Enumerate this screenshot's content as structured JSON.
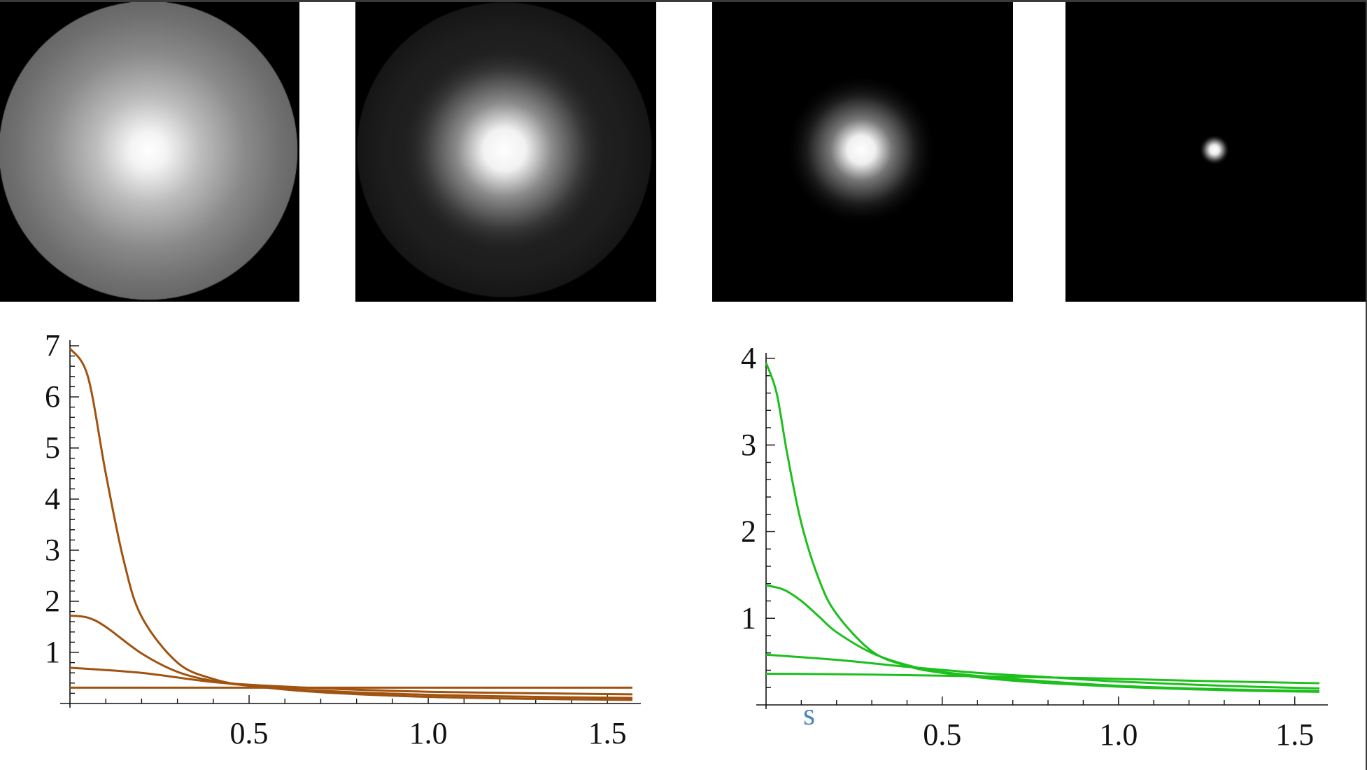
{
  "colors": {
    "brown_series": "#a0520f",
    "green_series": "#1dbf1d",
    "background": "#ffffff",
    "panel_background": "#000000",
    "stray_mark": "#4a87b8"
  },
  "panels": [
    {
      "name": "intensity-panel-1"
    },
    {
      "name": "intensity-panel-2"
    },
    {
      "name": "intensity-panel-3"
    },
    {
      "name": "intensity-panel-4"
    }
  ],
  "stray_mark_text": "s",
  "chart_data": [
    {
      "type": "line",
      "xlim": [
        0,
        1.57
      ],
      "ylim": [
        0,
        7
      ],
      "x_ticks": [
        "0.5",
        "1.0",
        "1.5"
      ],
      "y_ticks": [
        "1",
        "2",
        "3",
        "4",
        "5",
        "6",
        "7"
      ],
      "grid": false,
      "series": [
        {
          "x": [
            0,
            0.05,
            0.1,
            0.15,
            0.2,
            0.3,
            0.4,
            0.5,
            0.7,
            1.0,
            1.3,
            1.57
          ],
          "y": [
            6.95,
            6.4,
            4.5,
            2.8,
            1.7,
            0.8,
            0.48,
            0.35,
            0.22,
            0.13,
            0.09,
            0.07
          ]
        },
        {
          "x": [
            0,
            0.05,
            0.1,
            0.2,
            0.3,
            0.4,
            0.5,
            0.7,
            1.0,
            1.3,
            1.57
          ],
          "y": [
            1.72,
            1.68,
            1.5,
            0.98,
            0.62,
            0.44,
            0.35,
            0.25,
            0.17,
            0.13,
            0.11
          ]
        },
        {
          "x": [
            0,
            0.2,
            0.4,
            0.6,
            0.8,
            1.0,
            1.3,
            1.57
          ],
          "y": [
            0.7,
            0.6,
            0.42,
            0.33,
            0.27,
            0.23,
            0.2,
            0.18
          ]
        },
        {
          "x": [
            0,
            0.5,
            1.0,
            1.57
          ],
          "y": [
            0.31,
            0.31,
            0.31,
            0.31
          ]
        }
      ]
    },
    {
      "type": "line",
      "xlim": [
        0,
        1.57
      ],
      "ylim": [
        0,
        4
      ],
      "x_ticks": [
        "0.5",
        "1.0",
        "1.5"
      ],
      "y_ticks": [
        "1",
        "2",
        "3",
        "4"
      ],
      "grid": false,
      "series": [
        {
          "x": [
            0,
            0.03,
            0.06,
            0.1,
            0.15,
            0.2,
            0.3,
            0.4,
            0.5,
            0.7,
            1.0,
            1.3,
            1.57
          ],
          "y": [
            3.95,
            3.6,
            2.9,
            2.1,
            1.45,
            1.05,
            0.62,
            0.45,
            0.37,
            0.28,
            0.21,
            0.17,
            0.15
          ]
        },
        {
          "x": [
            0,
            0.05,
            0.1,
            0.15,
            0.2,
            0.3,
            0.4,
            0.5,
            0.7,
            1.0,
            1.3,
            1.57
          ],
          "y": [
            1.38,
            1.33,
            1.2,
            1.02,
            0.84,
            0.6,
            0.46,
            0.38,
            0.3,
            0.22,
            0.18,
            0.16
          ]
        },
        {
          "x": [
            0,
            0.2,
            0.4,
            0.6,
            0.8,
            1.0,
            1.3,
            1.57
          ],
          "y": [
            0.58,
            0.52,
            0.44,
            0.37,
            0.32,
            0.27,
            0.22,
            0.19
          ]
        },
        {
          "x": [
            0,
            0.3,
            0.6,
            0.9,
            1.2,
            1.57
          ],
          "y": [
            0.36,
            0.35,
            0.33,
            0.31,
            0.28,
            0.25
          ]
        }
      ]
    }
  ]
}
